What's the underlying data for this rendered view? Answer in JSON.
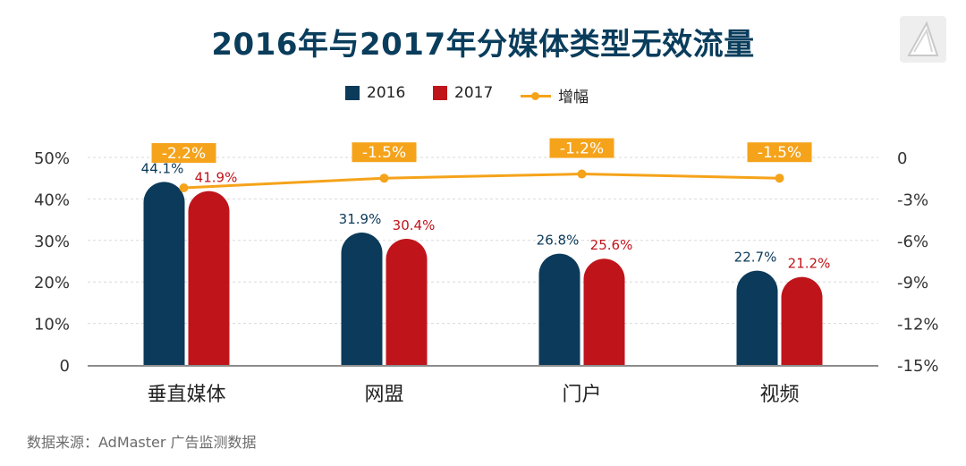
{
  "chart_data": {
    "type": "bar",
    "title": "2016年与2017年分媒体类型无效流量",
    "categories": [
      "垂直媒体",
      "网盟",
      "门户",
      "视频"
    ],
    "series": [
      {
        "name": "2016",
        "values": [
          44.1,
          31.9,
          26.8,
          22.7
        ],
        "labels": [
          "44.1%",
          "31.9%",
          "26.8%",
          "22.7%"
        ],
        "color": "#0b3a5a"
      },
      {
        "name": "2017",
        "values": [
          41.9,
          30.4,
          25.6,
          21.2
        ],
        "labels": [
          "41.9%",
          "30.4%",
          "25.6%",
          "21.2%"
        ],
        "color": "#c0141b"
      }
    ],
    "line_series": {
      "name": "增幅",
      "axis": "right",
      "values": [
        -2.2,
        -1.5,
        -1.2,
        -1.5
      ],
      "labels": [
        "-2.2%",
        "-1.5%",
        "-1.2%",
        "-1.5%"
      ],
      "color": "#f5a31a"
    },
    "y_left": {
      "min": 0,
      "max": 50,
      "ticks": [
        "0",
        "10%",
        "20%",
        "30%",
        "40%",
        "50%"
      ]
    },
    "y_right": {
      "min": -15,
      "max": 0,
      "ticks": [
        "-15%",
        "-12%",
        "-9%",
        "-6%",
        "-3%",
        "0"
      ]
    },
    "grid": true,
    "legend_position": "top-center"
  },
  "source": "数据来源：AdMaster 广告监测数据",
  "colors": {
    "title": "#0a3d5c",
    "grid": "#d9d9d9",
    "axis": "#8c8c8c",
    "label_box": "#f5a31a"
  }
}
